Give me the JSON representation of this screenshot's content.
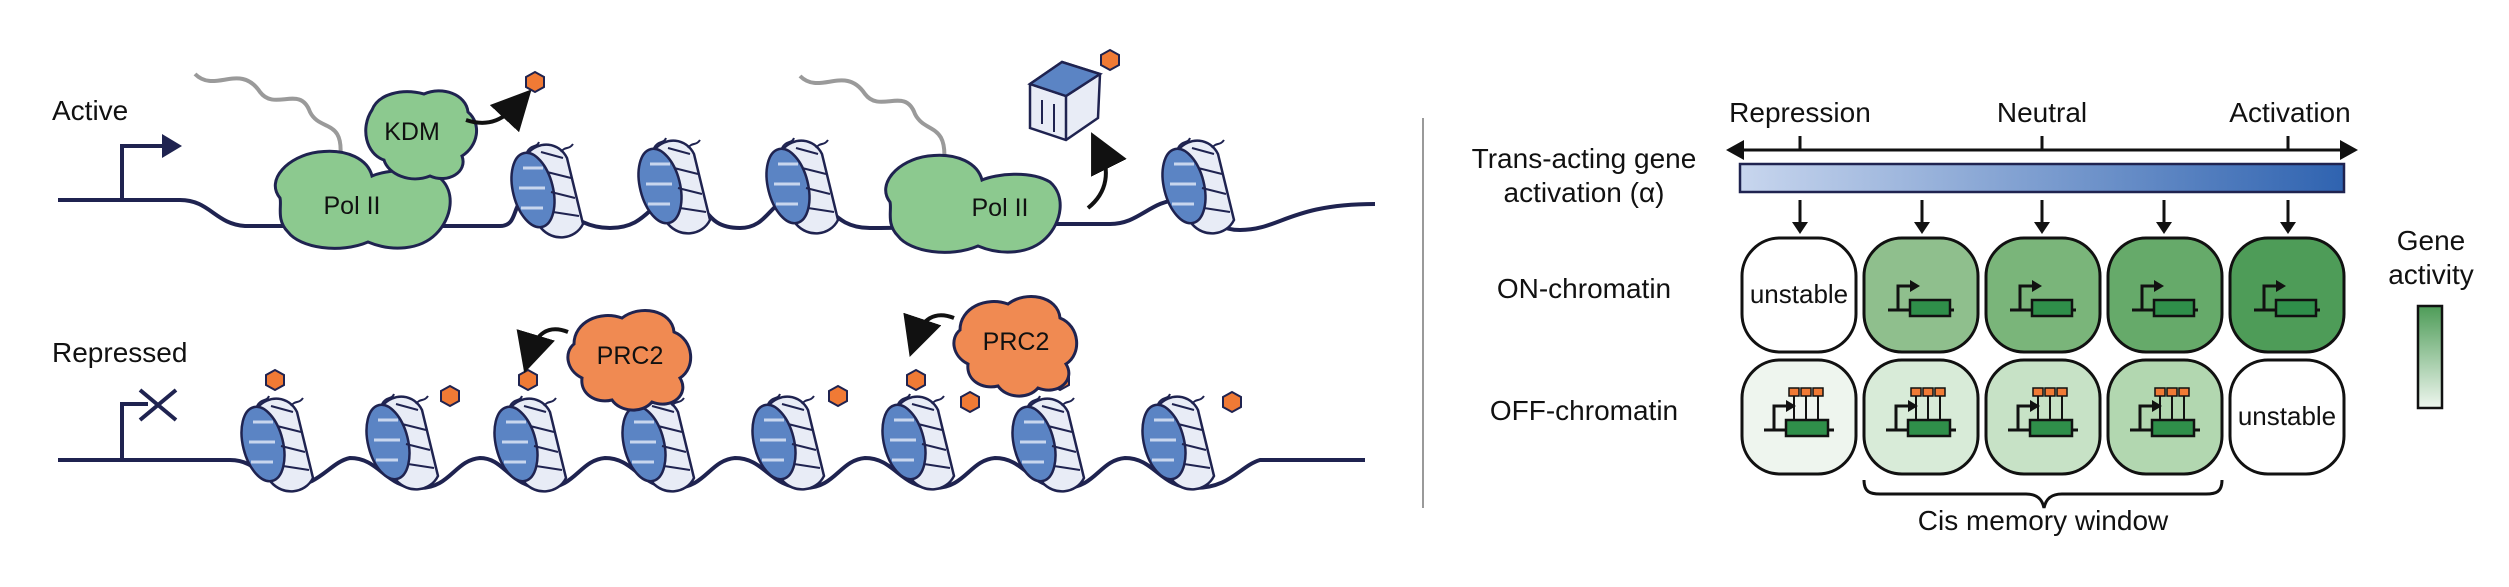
{
  "left_panel": {
    "active_label": "Active",
    "repressed_label": "Repressed",
    "kdm_label": "KDM",
    "pol2_label": "Pol II",
    "prc2_label": "PRC2"
  },
  "right_panel": {
    "axis_repression": "Repression",
    "axis_neutral": "Neutral",
    "axis_activation": "Activation",
    "axis_title_line1": "Trans-acting gene",
    "axis_title_line2": "activation (α)",
    "row_on": "ON-chromatin",
    "row_off": "OFF-chromatin",
    "unstable": "unstable",
    "legend_line1": "Gene",
    "legend_line2": "activity",
    "memory_window": "Cis memory window"
  },
  "colors": {
    "dna": "#1f2350",
    "pol2_fill": "#8cc98f",
    "prc2_fill": "#f08a52",
    "mark": "#f07a35",
    "nucleosome_blue": "#5b84c4",
    "gradient_start": "#c8d6ee",
    "gradient_end": "#2f63b0",
    "on_cells": [
      "#ffffff",
      "#8fbf8d",
      "#7ab57a",
      "#66aa6a",
      "#4e9c58"
    ],
    "off_cells": [
      "#eef5ee",
      "#d8ebd8",
      "#c7e2c6",
      "#b2d7b0",
      "#ffffff"
    ]
  }
}
